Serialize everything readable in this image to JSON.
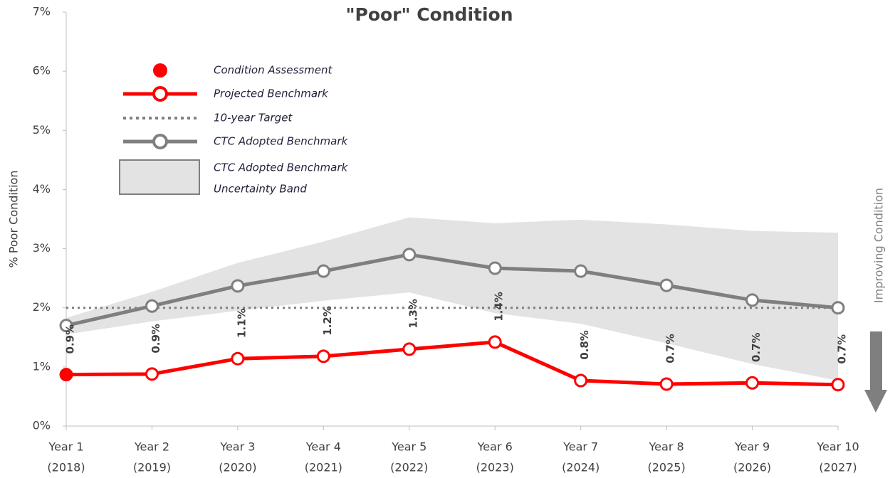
{
  "chart_data": {
    "type": "line",
    "title": "\"Poor\" Condition",
    "y_label": "% Poor Condition",
    "side_annotation": "Improving Condition",
    "categories": [
      "Year 1",
      "Year 2",
      "Year 3",
      "Year 4",
      "Year 5",
      "Year 6",
      "Year 7",
      "Year 8",
      "Year 9",
      "Year 10"
    ],
    "category_sublabels": [
      "(2018)",
      "(2019)",
      "(2020)",
      "(2021)",
      "(2022)",
      "(2023)",
      "(2024)",
      "(2025)",
      "(2026)",
      "(2027)"
    ],
    "ylim": [
      0,
      7
    ],
    "yticks": [
      {
        "value": 0,
        "label": "0%"
      },
      {
        "value": 1,
        "label": "1%"
      },
      {
        "value": 2,
        "label": "2%"
      },
      {
        "value": 3,
        "label": "3%"
      },
      {
        "value": 4,
        "label": "4%"
      },
      {
        "value": 5,
        "label": "5%"
      },
      {
        "value": 6,
        "label": "6%"
      },
      {
        "value": 7,
        "label": "7%"
      }
    ],
    "band": {
      "name_lines": [
        "CTC Adopted Benchmark",
        "Uncertainty Band"
      ],
      "color": "#e3e3e3",
      "upper": [
        1.83,
        2.27,
        2.76,
        3.12,
        3.53,
        3.43,
        3.49,
        3.41,
        3.3,
        3.27
      ],
      "lower": [
        1.55,
        1.77,
        1.95,
        2.12,
        2.26,
        1.91,
        1.73,
        1.4,
        1.05,
        0.77
      ]
    },
    "target": {
      "name": "10-year Target",
      "value": 2,
      "color": "#808080"
    },
    "series": [
      {
        "name": "CTC Adopted Benchmark",
        "color": "#7f7f7f",
        "marker": "open",
        "values": [
          1.7,
          2.03,
          2.37,
          2.62,
          2.9,
          2.67,
          2.62,
          2.38,
          2.13,
          2.0
        ]
      },
      {
        "name": "Projected Benchmark",
        "color": "#ff0000",
        "marker": "open",
        "values": [
          0.87,
          0.88,
          1.14,
          1.18,
          1.3,
          1.42,
          0.77,
          0.71,
          0.73,
          0.7
        ],
        "value_labels": [
          "0.9%",
          "0.9%",
          "1.1%",
          "1.2%",
          "1.3%",
          "1.4%",
          "0.8%",
          "0.7%",
          "0.7%",
          "0.7%"
        ]
      },
      {
        "name": "Condition Assessment",
        "color": "#ff0000",
        "marker": "filled",
        "values": [
          0.87,
          null,
          null,
          null,
          null,
          null,
          null,
          null,
          null,
          null
        ]
      }
    ]
  }
}
